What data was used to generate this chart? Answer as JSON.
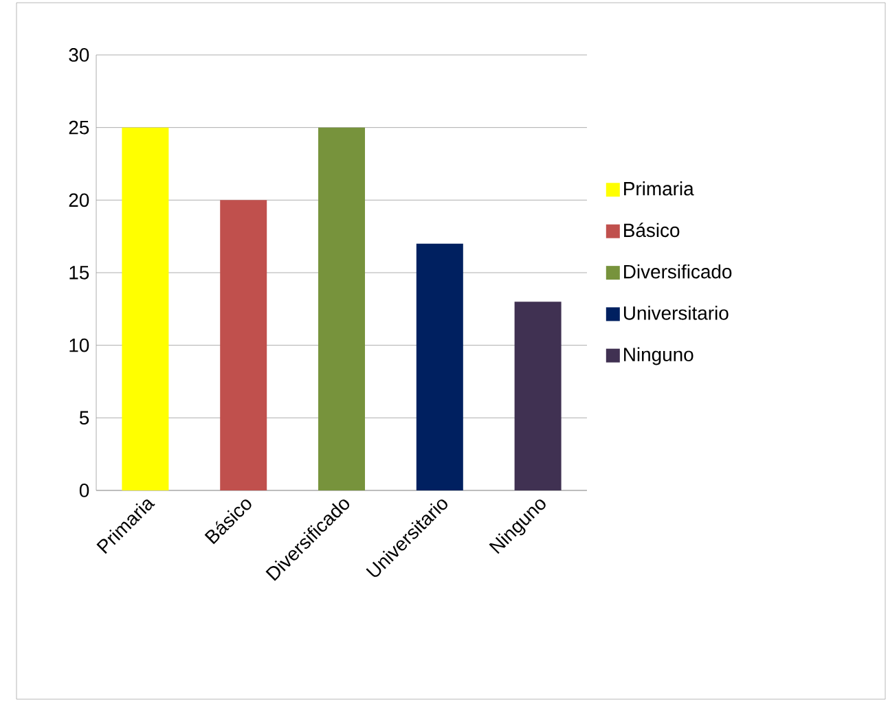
{
  "chart_data": {
    "type": "bar",
    "stacked": true,
    "categories": [
      "Primaria",
      "Básico",
      "Diversificado",
      "Universitario",
      "Ninguno"
    ],
    "series": [
      {
        "name": "Primaria",
        "color": "#ffff00",
        "values": [
          25,
          null,
          null,
          null,
          null
        ]
      },
      {
        "name": "Básico",
        "color": "#c0504d",
        "values": [
          null,
          20,
          null,
          null,
          null
        ]
      },
      {
        "name": "Diversificado",
        "color": "#77933c",
        "values": [
          null,
          null,
          25,
          null,
          null
        ]
      },
      {
        "name": "Universitario",
        "color": "#002060",
        "values": [
          null,
          null,
          null,
          17,
          null
        ]
      },
      {
        "name": "Ninguno",
        "color": "#403152",
        "values": [
          null,
          null,
          null,
          null,
          13
        ]
      }
    ],
    "ylim": [
      0,
      30
    ],
    "yticks": [
      0,
      5,
      10,
      15,
      20,
      25,
      30
    ],
    "grid": "y",
    "legend": "right"
  }
}
